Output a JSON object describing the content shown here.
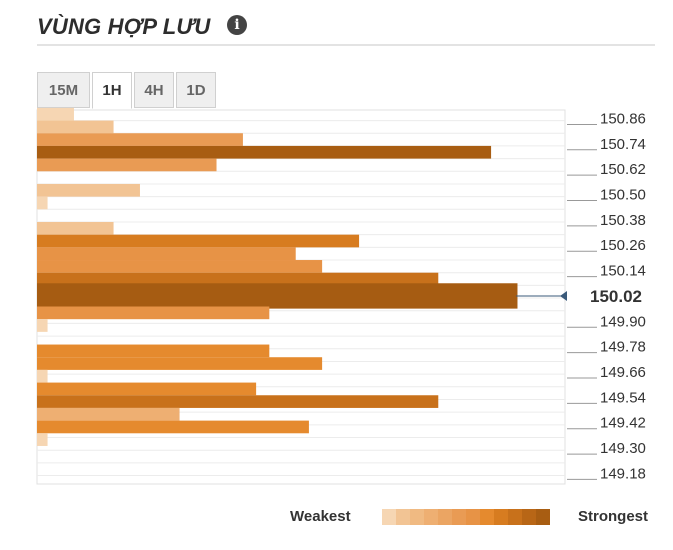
{
  "header": {
    "title": "VÙNG HỢP LƯU",
    "info_icon": "info-icon"
  },
  "tabs": [
    {
      "label": "15M",
      "active": false
    },
    {
      "label": "1H",
      "active": true
    },
    {
      "label": "4H",
      "active": false
    },
    {
      "label": "1D",
      "active": false
    }
  ],
  "chart_data": {
    "type": "bar",
    "orientation": "horizontal",
    "y_tick_labels": [
      "150.86",
      "150.74",
      "150.62",
      "150.50",
      "150.38",
      "150.26",
      "150.14",
      "149.90",
      "149.78",
      "149.66",
      "149.54",
      "149.42",
      "149.30",
      "149.18"
    ],
    "current_price": "150.02",
    "bars": [
      {
        "price": 150.88,
        "strength": 0.07,
        "level": 1
      },
      {
        "price": 150.82,
        "strength": 0.145,
        "level": 2
      },
      {
        "price": 150.76,
        "strength": 0.39,
        "level": 6
      },
      {
        "price": 150.7,
        "strength": 0.86,
        "level": 12
      },
      {
        "price": 150.64,
        "strength": 0.34,
        "level": 6
      },
      {
        "price": 150.52,
        "strength": 0.195,
        "level": 2
      },
      {
        "price": 150.46,
        "strength": 0.02,
        "level": 1
      },
      {
        "price": 150.34,
        "strength": 0.145,
        "level": 2
      },
      {
        "price": 150.28,
        "strength": 0.61,
        "level": 9
      },
      {
        "price": 150.22,
        "strength": 0.49,
        "level": 7
      },
      {
        "price": 150.16,
        "strength": 0.54,
        "level": 7
      },
      {
        "price": 150.1,
        "strength": 0.76,
        "level": 10
      },
      {
        "price": 150.02,
        "strength": 0.91,
        "level": 12,
        "current": true
      },
      {
        "price": 149.94,
        "strength": 0.44,
        "level": 7
      },
      {
        "price": 149.88,
        "strength": 0.02,
        "level": 1
      },
      {
        "price": 149.76,
        "strength": 0.44,
        "level": 8
      },
      {
        "price": 149.7,
        "strength": 0.54,
        "level": 8
      },
      {
        "price": 149.64,
        "strength": 0.02,
        "level": 1
      },
      {
        "price": 149.58,
        "strength": 0.415,
        "level": 8
      },
      {
        "price": 149.52,
        "strength": 0.76,
        "level": 10
      },
      {
        "price": 149.46,
        "strength": 0.27,
        "level": 4
      },
      {
        "price": 149.4,
        "strength": 0.515,
        "level": 8
      },
      {
        "price": 149.34,
        "strength": 0.02,
        "level": 1
      }
    ]
  },
  "legend": {
    "weakest_label": "Weakest",
    "strongest_label": "Strongest",
    "colors": [
      "#f6d6b3",
      "#f2c494",
      "#f0ba82",
      "#eeaf72",
      "#eba563",
      "#e99b54",
      "#e79346",
      "#e58a2e",
      "#d77c20",
      "#c8711b",
      "#b86616",
      "#a85d12"
    ]
  }
}
